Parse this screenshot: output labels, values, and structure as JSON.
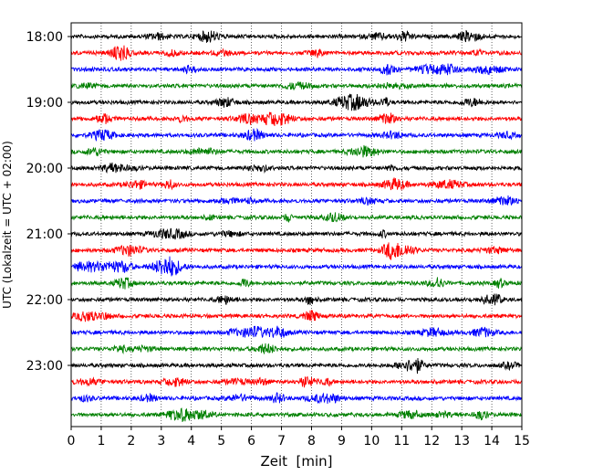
{
  "chart_data": {
    "type": "line",
    "title": "",
    "xlabel": "Zeit  [min]",
    "ylabel": "UTC (Lokalzeit = UTC + 02:00)",
    "xlim": [
      0,
      15
    ],
    "x_ticks": [
      "0",
      "1",
      "2",
      "3",
      "4",
      "5",
      "6",
      "7",
      "8",
      "9",
      "10",
      "11",
      "12",
      "13",
      "14",
      "15"
    ],
    "y_tick_labels": [
      "18:00",
      "19:00",
      "20:00",
      "21:00",
      "22:00",
      "23:00"
    ],
    "y_tick_rows": [
      0,
      4,
      8,
      12,
      16,
      20
    ],
    "grid": "vertical dotted lines at each minute",
    "trace_count": 24,
    "trace_start": "18:00",
    "trace_interval_minutes": 15,
    "color_cycle": [
      "#000000",
      "#ff0000",
      "#0000ff",
      "#008000"
    ]
  }
}
